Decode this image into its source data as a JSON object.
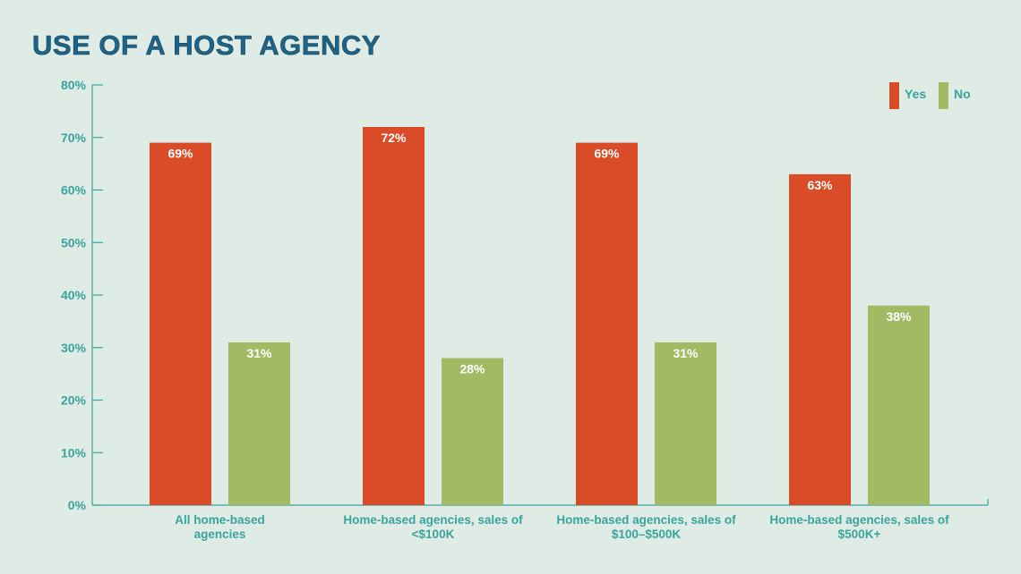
{
  "chart_data": {
    "type": "bar",
    "title": "USE OF A HOST AGENCY",
    "categories": [
      [
        "All home-based",
        "agencies"
      ],
      [
        "Home-based agencies, sales of",
        "<$100K"
      ],
      [
        "Home-based agencies, sales of",
        "$100–$500K"
      ],
      [
        "Home-based agencies, sales of",
        "$500K+"
      ]
    ],
    "series": [
      {
        "name": "Yes",
        "color": "#d94c27",
        "values": [
          69,
          72,
          69,
          63
        ],
        "labels": [
          "69%",
          "72%",
          "69%",
          "63%"
        ]
      },
      {
        "name": "No",
        "color": "#a2ba64",
        "values": [
          31,
          28,
          31,
          38
        ],
        "labels": [
          "31%",
          "28%",
          "31%",
          "38%"
        ]
      }
    ],
    "ylim": [
      0,
      80
    ],
    "yticks": [
      0,
      10,
      20,
      30,
      40,
      50,
      60,
      70,
      80
    ],
    "ytick_labels": [
      "0%",
      "10%",
      "20%",
      "30%",
      "40%",
      "50%",
      "60%",
      "70%",
      "80%"
    ],
    "legend_position": "top-right",
    "grid": false,
    "axis_color": "#3aa39b",
    "background": "#dfece6"
  }
}
